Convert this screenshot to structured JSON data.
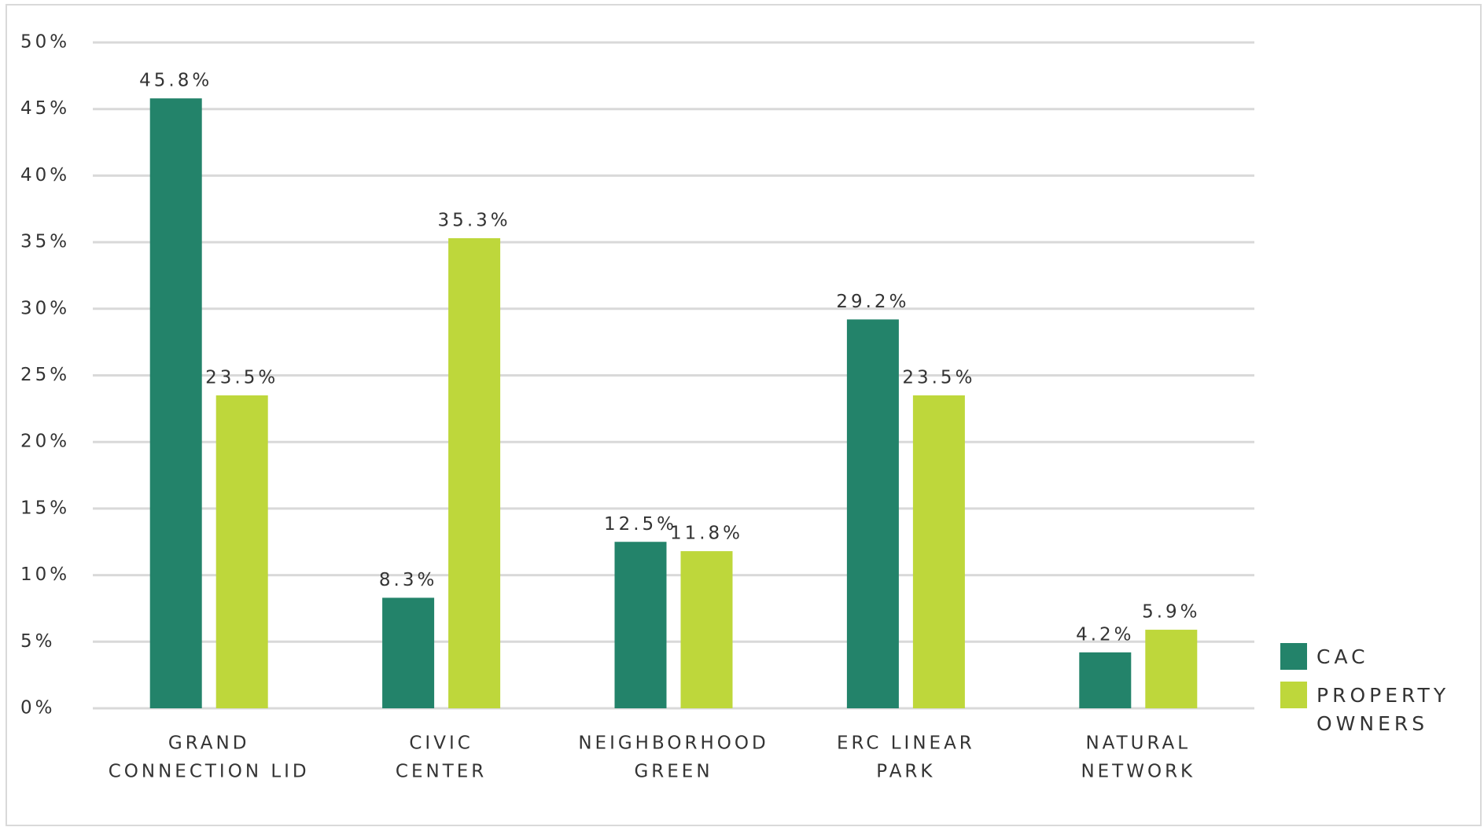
{
  "chart_data": {
    "type": "bar",
    "categories": [
      [
        "GRAND",
        "CONNECTION LID"
      ],
      [
        "CIVIC",
        "CENTER"
      ],
      [
        "NEIGHBORHOOD",
        "GREEN"
      ],
      [
        "ERC LINEAR",
        "PARK"
      ],
      [
        "NATURAL",
        "NETWORK"
      ]
    ],
    "series": [
      {
        "name": "CAC",
        "color": "#23836a",
        "values": [
          45.8,
          8.3,
          12.5,
          29.2,
          4.2
        ],
        "value_labels": [
          "45.8%",
          "8.3%",
          "12.5%",
          "29.2%",
          "4.2%"
        ]
      },
      {
        "name": "PROPERTY OWNERS",
        "color": "#bed73b",
        "values": [
          23.5,
          35.3,
          11.8,
          23.5,
          5.9
        ],
        "value_labels": [
          "23.5%",
          "35.3%",
          "11.8%",
          "23.5%",
          "5.9%"
        ]
      }
    ],
    "ylim": [
      0,
      50
    ],
    "yticks": [
      {
        "value": 0,
        "label": "0%"
      },
      {
        "value": 5,
        "label": "5%"
      },
      {
        "value": 10,
        "label": "10%"
      },
      {
        "value": 15,
        "label": "15%"
      },
      {
        "value": 20,
        "label": "20%"
      },
      {
        "value": 25,
        "label": "25%"
      },
      {
        "value": 30,
        "label": "30%"
      },
      {
        "value": 35,
        "label": "35%"
      },
      {
        "value": 40,
        "label": "40%"
      },
      {
        "value": 45,
        "label": "45%"
      },
      {
        "value": 50,
        "label": "50%"
      }
    ],
    "grid": true,
    "legend": "right"
  }
}
